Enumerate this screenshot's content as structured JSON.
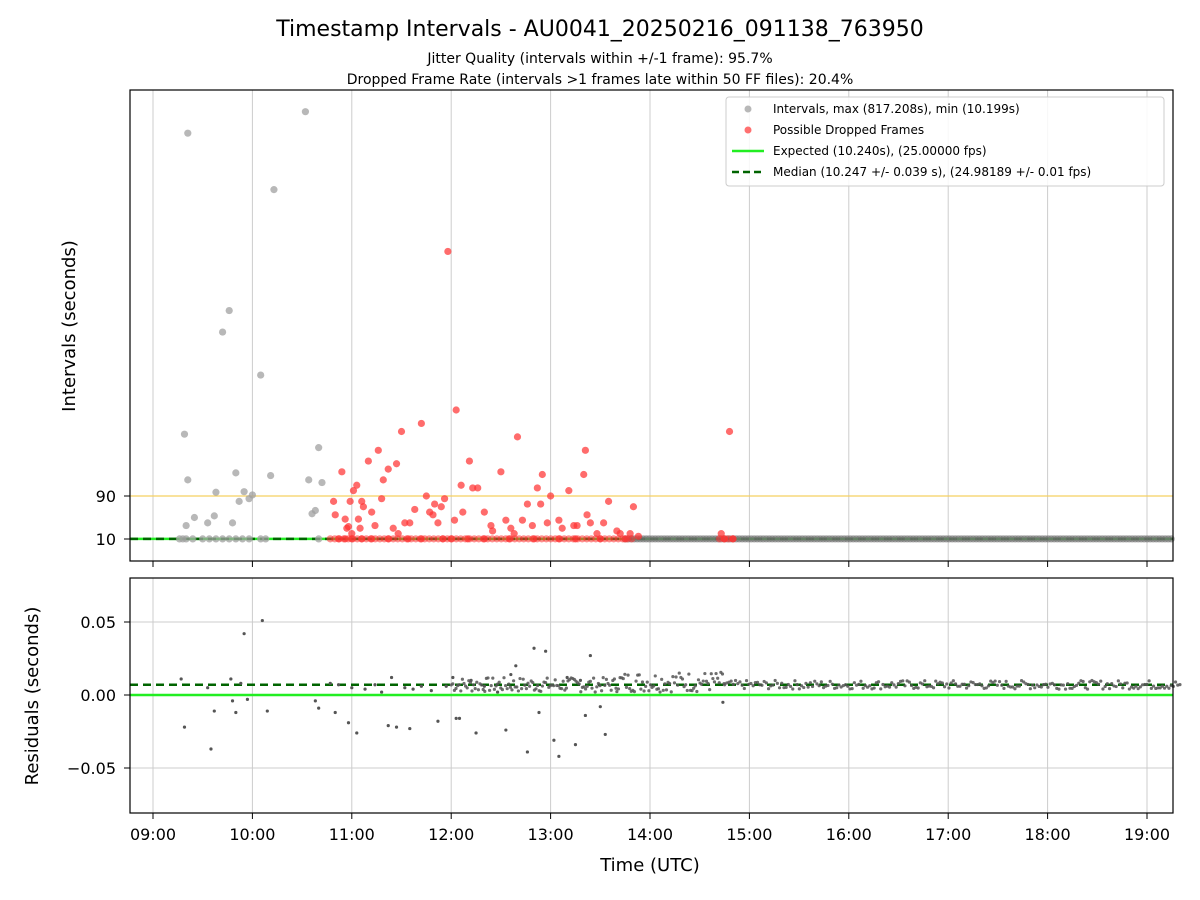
{
  "chart_data": [
    {
      "type": "scatter",
      "title": "Timestamp Intervals - AU0041_20250216_091138_763950",
      "subtitle_lines": [
        "Jitter Quality (intervals within +/-1 frame): 95.7%",
        "Dropped Frame Rate (intervals >1 frames late within 50 FF files): 20.4%"
      ],
      "xlabel": "Time (UTC)",
      "ylabel": "Intervals (seconds)",
      "x_ticks": [
        "09:00",
        "10:00",
        "11:00",
        "12:00",
        "13:00",
        "14:00",
        "15:00",
        "16:00",
        "17:00",
        "18:00",
        "19:00"
      ],
      "y_ticks": [
        10,
        90
      ],
      "grid": "vertical",
      "legend_position": "top-right",
      "reference_lines": {
        "expected": 10.24,
        "median": 10.247,
        "threshold": 90
      },
      "colors": {
        "intervals": "#a0a0a0",
        "dropped": "#ff3333",
        "expected": "#22ee22",
        "median": "#006400",
        "threshold": "#f5d060"
      },
      "series": [
        {
          "name": "Intervals, max (817.208s), min (10.199s)",
          "points": [
            [
              "09:16",
              10.2
            ],
            [
              "09:18",
              10.2
            ],
            [
              "09:20",
              10.2
            ],
            [
              "09:24",
              10.2
            ],
            [
              "09:30",
              10.2
            ],
            [
              "09:34",
              10.2
            ],
            [
              "09:38",
              10.2
            ],
            [
              "09:42",
              10.2
            ],
            [
              "09:46",
              10.2
            ],
            [
              "09:50",
              10.2
            ],
            [
              "09:54",
              10.2
            ],
            [
              "09:58",
              10.2
            ],
            [
              "10:05",
              10.2
            ],
            [
              "10:08",
              10.2
            ],
            [
              "10:40",
              10.2
            ],
            [
              "09:20",
              35
            ],
            [
              "09:21",
              120
            ],
            [
              "09:19",
              205
            ],
            [
              "09:21",
              765
            ],
            [
              "09:25",
              50
            ],
            [
              "09:33",
              40
            ],
            [
              "09:37",
              53
            ],
            [
              "09:38",
              97
            ],
            [
              "09:42",
              395
            ],
            [
              "09:46",
              435
            ],
            [
              "09:48",
              40
            ],
            [
              "09:50",
              133
            ],
            [
              "09:52",
              80
            ],
            [
              "09:55",
              98
            ],
            [
              "09:58",
              85
            ],
            [
              "10:00",
              92
            ],
            [
              "10:05",
              315
            ],
            [
              "10:11",
              128
            ],
            [
              "10:13",
              660
            ],
            [
              "10:32",
              805
            ],
            [
              "10:34",
              120
            ],
            [
              "10:36",
              57
            ],
            [
              "10:38",
              63
            ],
            [
              "10:40",
              180
            ],
            [
              "10:42",
              115
            ]
          ]
        },
        {
          "name": "Possible Dropped Frames",
          "points": [
            [
              "10:52",
              10.3
            ],
            [
              "10:56",
              10.3
            ],
            [
              "11:00",
              10.3
            ],
            [
              "11:06",
              10.3
            ],
            [
              "11:12",
              10.3
            ],
            [
              "11:22",
              10.3
            ],
            [
              "11:34",
              10.3
            ],
            [
              "11:42",
              10.3
            ],
            [
              "11:55",
              10.3
            ],
            [
              "12:00",
              10.3
            ],
            [
              "12:10",
              10.3
            ],
            [
              "12:20",
              10.3
            ],
            [
              "12:35",
              10.3
            ],
            [
              "12:50",
              10.3
            ],
            [
              "13:05",
              10.3
            ],
            [
              "13:15",
              10.3
            ],
            [
              "13:30",
              10.3
            ],
            [
              "13:45",
              10.3
            ],
            [
              "14:45",
              10.3
            ],
            [
              "14:50",
              10.3
            ],
            [
              "10:49",
              80
            ],
            [
              "10:50",
              55
            ],
            [
              "10:54",
              135
            ],
            [
              "10:56",
              47
            ],
            [
              "10:57",
              30
            ],
            [
              "10:58",
              33
            ],
            [
              "10:59",
              80
            ],
            [
              "11:00",
              20
            ],
            [
              "11:01",
              100
            ],
            [
              "11:03",
              110
            ],
            [
              "11:04",
              47
            ],
            [
              "11:05",
              30
            ],
            [
              "11:06",
              80
            ],
            [
              "11:07",
              70
            ],
            [
              "11:10",
              155
            ],
            [
              "11:12",
              60
            ],
            [
              "11:14",
              35
            ],
            [
              "11:16",
              175
            ],
            [
              "11:18",
              85
            ],
            [
              "11:19",
              120
            ],
            [
              "11:22",
              140
            ],
            [
              "11:25",
              30
            ],
            [
              "11:27",
              150
            ],
            [
              "11:28",
              20
            ],
            [
              "11:30",
              210
            ],
            [
              "11:32",
              40
            ],
            [
              "11:35",
              40
            ],
            [
              "11:38",
              65
            ],
            [
              "11:42",
              225
            ],
            [
              "11:45",
              90
            ],
            [
              "11:47",
              60
            ],
            [
              "11:49",
              55
            ],
            [
              "11:50",
              75
            ],
            [
              "11:52",
              40
            ],
            [
              "11:54",
              70
            ],
            [
              "11:56",
              85
            ],
            [
              "11:58",
              545
            ],
            [
              "12:02",
              45
            ],
            [
              "12:06",
              110
            ],
            [
              "12:07",
              60
            ],
            [
              "12:11",
              155
            ],
            [
              "12:13",
              105
            ],
            [
              "12:16",
              105
            ],
            [
              "12:20",
              60
            ],
            [
              "12:24",
              35
            ],
            [
              "12:25",
              25
            ],
            [
              "12:30",
              135
            ],
            [
              "12:33",
              45
            ],
            [
              "12:36",
              30
            ],
            [
              "12:38",
              20
            ],
            [
              "12:40",
              200
            ],
            [
              "12:43",
              45
            ],
            [
              "12:46",
              75
            ],
            [
              "12:49",
              35
            ],
            [
              "12:52",
              105
            ],
            [
              "12:54",
              75
            ],
            [
              "12:55",
              130
            ],
            [
              "12:58",
              40
            ],
            [
              "13:00",
              90
            ],
            [
              "13:05",
              45
            ],
            [
              "13:07",
              30
            ],
            [
              "13:11",
              100
            ],
            [
              "13:14",
              35
            ],
            [
              "13:16",
              35
            ],
            [
              "13:20",
              130
            ],
            [
              "13:21",
              175
            ],
            [
              "13:22",
              55
            ],
            [
              "13:24",
              40
            ],
            [
              "13:28",
              20
            ],
            [
              "13:32",
              40
            ],
            [
              "13:35",
              80
            ],
            [
              "13:40",
              25
            ],
            [
              "13:42",
              20
            ],
            [
              "13:48",
              20
            ],
            [
              "13:50",
              70
            ],
            [
              "13:53",
              15
            ],
            [
              "14:43",
              20
            ],
            [
              "14:48",
              210
            ],
            [
              "12:03",
              250
            ]
          ]
        },
        {
          "name": "Expected (10.240s), (25.00000 fps)"
        },
        {
          "name": "Median (10.247 +/- 0.039 s), (24.98189 +/- 0.01 fps)"
        }
      ]
    },
    {
      "type": "scatter",
      "xlabel": "Time (UTC)",
      "ylabel": "Residuals (seconds)",
      "y_ticks": [
        "0.05",
        "0.00",
        "−0.05"
      ],
      "ylim": [
        -0.08,
        0.08
      ],
      "grid": "both",
      "reference_lines": {
        "expected": 0.0,
        "median": 0.007
      },
      "colors": {
        "points": "#555555",
        "expected": "#22ee22",
        "median": "#006400"
      },
      "series": [
        {
          "points": [
            [
              "09:17",
              0.011
            ],
            [
              "09:19",
              -0.022
            ],
            [
              "09:33",
              0.005
            ],
            [
              "09:35",
              -0.037
            ],
            [
              "09:37",
              -0.011
            ],
            [
              "09:47",
              0.011
            ],
            [
              "09:48",
              -0.004
            ],
            [
              "09:50",
              -0.012
            ],
            [
              "09:53",
              0.008
            ],
            [
              "09:55",
              0.042
            ],
            [
              "09:57",
              -0.003
            ],
            [
              "10:06",
              0.051
            ],
            [
              "10:09",
              -0.011
            ],
            [
              "10:38",
              -0.004
            ],
            [
              "10:40",
              -0.009
            ],
            [
              "10:47",
              0.008
            ],
            [
              "10:50",
              -0.012
            ],
            [
              "10:52",
              0.007
            ],
            [
              "10:58",
              -0.019
            ],
            [
              "11:00",
              0.005
            ],
            [
              "11:03",
              -0.026
            ],
            [
              "11:08",
              0.004
            ],
            [
              "11:14",
              0.007
            ],
            [
              "11:18",
              0.002
            ],
            [
              "11:22",
              -0.021
            ],
            [
              "11:24",
              0.012
            ],
            [
              "11:27",
              -0.022
            ],
            [
              "11:32",
              0.005
            ],
            [
              "11:35",
              -0.023
            ],
            [
              "11:37",
              0.004
            ],
            [
              "11:42",
              0.006
            ],
            [
              "11:48",
              0.003
            ],
            [
              "11:52",
              -0.018
            ],
            [
              "11:57",
              0.006
            ],
            [
              "12:01",
              0.012
            ],
            [
              "12:03",
              -0.016
            ],
            [
              "12:05",
              -0.016
            ],
            [
              "12:12",
              0.01
            ],
            [
              "12:15",
              -0.026
            ],
            [
              "12:20",
              0.006
            ],
            [
              "12:28",
              0.002
            ],
            [
              "12:33",
              -0.024
            ],
            [
              "12:36",
              0.014
            ],
            [
              "12:39",
              0.02
            ],
            [
              "12:46",
              -0.039
            ],
            [
              "12:50",
              0.032
            ],
            [
              "12:53",
              -0.012
            ],
            [
              "12:57",
              0.03
            ],
            [
              "13:02",
              -0.031
            ],
            [
              "13:05",
              -0.042
            ],
            [
              "13:10",
              0.012
            ],
            [
              "13:15",
              -0.034
            ],
            [
              "13:18",
              0.01
            ],
            [
              "13:21",
              -0.014
            ],
            [
              "13:24",
              0.027
            ],
            [
              "13:30",
              -0.008
            ],
            [
              "13:33",
              -0.027
            ],
            [
              "14:44",
              -0.005
            ]
          ],
          "dense_bands": [
            {
              "from": "12:00",
              "to": "13:40",
              "y_min": 0.002,
              "y_max": 0.012
            },
            {
              "from": "13:40",
              "to": "14:45",
              "y_min": 0.002,
              "y_max": 0.016
            },
            {
              "from": "14:45",
              "to": "19:20",
              "y_min": 0.004,
              "y_max": 0.01
            }
          ]
        }
      ]
    }
  ]
}
